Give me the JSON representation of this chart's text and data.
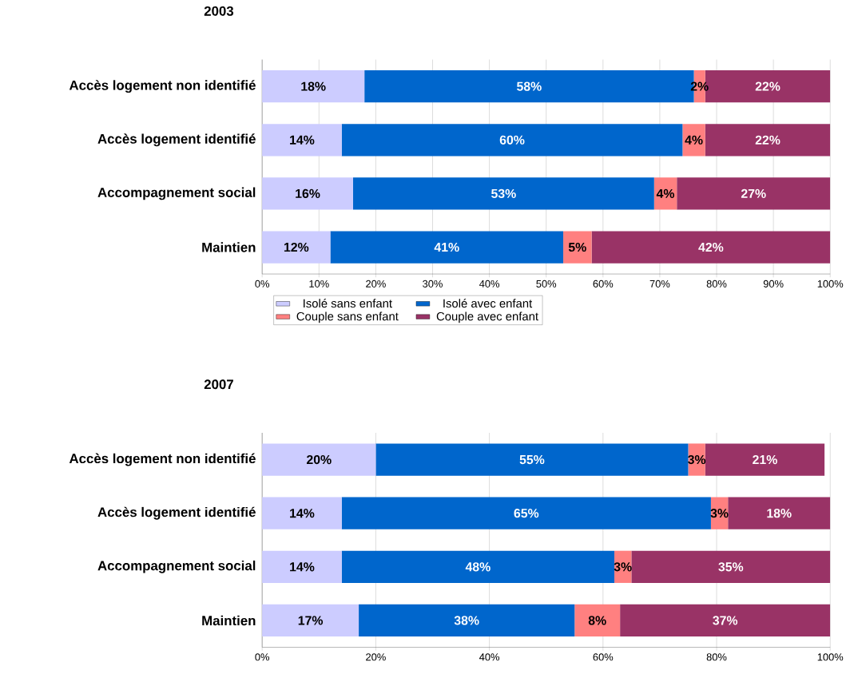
{
  "chart_data": [
    {
      "type": "bar",
      "title": "2003",
      "orientation": "horizontal",
      "stacked": true,
      "grid": "x",
      "legend": "bottom",
      "categories": [
        "Accès logement non identifié",
        "Accès logement identifié",
        "Accompagnement social",
        "Maintien"
      ],
      "series": [
        {
          "name": "Isolé sans enfant",
          "color": "#ccccff",
          "values": [
            18,
            14,
            16,
            12
          ],
          "value_labels": [
            "18%",
            "14%",
            "16%",
            "12%"
          ]
        },
        {
          "name": "Isolé avec enfant",
          "color": "#0066cc",
          "values": [
            58,
            60,
            53,
            41
          ],
          "value_labels": [
            "58%",
            "60%",
            "53%",
            "41%"
          ]
        },
        {
          "name": "Couple sans enfant",
          "color": "#ff8080",
          "values": [
            2,
            4,
            4,
            5
          ],
          "value_labels": [
            "2%",
            "4%",
            "4%",
            "5%"
          ]
        },
        {
          "name": "Couple avec enfant",
          "color": "#993366",
          "values": [
            22,
            22,
            27,
            42
          ],
          "value_labels": [
            "22%",
            "22%",
            "27%",
            "42%"
          ]
        }
      ],
      "xlim": [
        0,
        100
      ],
      "xticks": [
        {
          "value": 0,
          "label": "0%"
        },
        {
          "value": 10,
          "label": "10%"
        },
        {
          "value": 20,
          "label": "20%"
        },
        {
          "value": 30,
          "label": "30%"
        },
        {
          "value": 40,
          "label": "40%"
        },
        {
          "value": 50,
          "label": "50%"
        },
        {
          "value": 60,
          "label": "60%"
        },
        {
          "value": 70,
          "label": "70%"
        },
        {
          "value": 80,
          "label": "80%"
        },
        {
          "value": 90,
          "label": "90%"
        },
        {
          "value": 100,
          "label": "100%"
        }
      ]
    },
    {
      "type": "bar",
      "title": "2007",
      "orientation": "horizontal",
      "stacked": true,
      "grid": "x",
      "categories": [
        "Accès logement non identifié",
        "Accès logement identifié",
        "Accompagnement social",
        "Maintien"
      ],
      "series": [
        {
          "color": "#ccccff",
          "values": [
            20,
            14,
            14,
            17
          ],
          "value_labels": [
            "20%",
            "14%",
            "14%",
            "17%"
          ]
        },
        {
          "color": "#0066cc",
          "values": [
            55,
            65,
            48,
            38
          ],
          "value_labels": [
            "55%",
            "65%",
            "48%",
            "38%"
          ]
        },
        {
          "color": "#ff8080",
          "values": [
            3,
            3,
            3,
            8
          ],
          "value_labels": [
            "3%",
            "3%",
            "3%",
            "8%"
          ]
        },
        {
          "color": "#993366",
          "values": [
            21,
            18,
            35,
            37
          ],
          "value_labels": [
            "21%",
            "18%",
            "35%",
            "37%"
          ]
        }
      ],
      "xlim": [
        0,
        100
      ],
      "xticks": [
        {
          "value": 0,
          "label": "0%"
        },
        {
          "value": 20,
          "label": "20%"
        },
        {
          "value": 40,
          "label": "40%"
        },
        {
          "value": 60,
          "label": "60%"
        },
        {
          "value": 80,
          "label": "80%"
        },
        {
          "value": 100,
          "label": "100%"
        }
      ]
    }
  ]
}
